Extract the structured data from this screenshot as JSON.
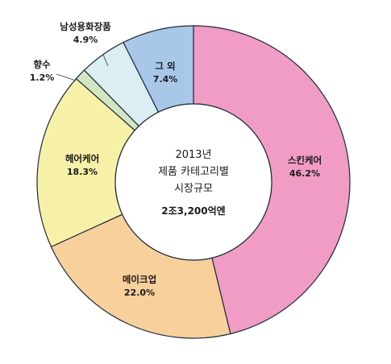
{
  "chart_data": {
    "type": "pie",
    "center_title": [
      "2013년",
      "제품 카테고리별",
      "시장규모"
    ],
    "center_total": "2조3,200억엔",
    "slices": [
      {
        "label": "스킨케어",
        "value": 46.2,
        "value_label": "46.2%",
        "color": "#f19cc4"
      },
      {
        "label": "메이크업",
        "value": 22.0,
        "value_label": "22.0%",
        "color": "#f8d09c"
      },
      {
        "label": "헤어케어",
        "value": 18.3,
        "value_label": "18.3%",
        "color": "#f6f1a6"
      },
      {
        "label": "향수",
        "value": 1.2,
        "value_label": "1.2%",
        "color": "#d3e6c2"
      },
      {
        "label": "남성용화장품",
        "value": 4.9,
        "value_label": "4.9%",
        "color": "#dbeef2"
      },
      {
        "label": "그 외",
        "value": 7.4,
        "value_label": "7.4%",
        "color": "#a9c8e9"
      }
    ]
  }
}
